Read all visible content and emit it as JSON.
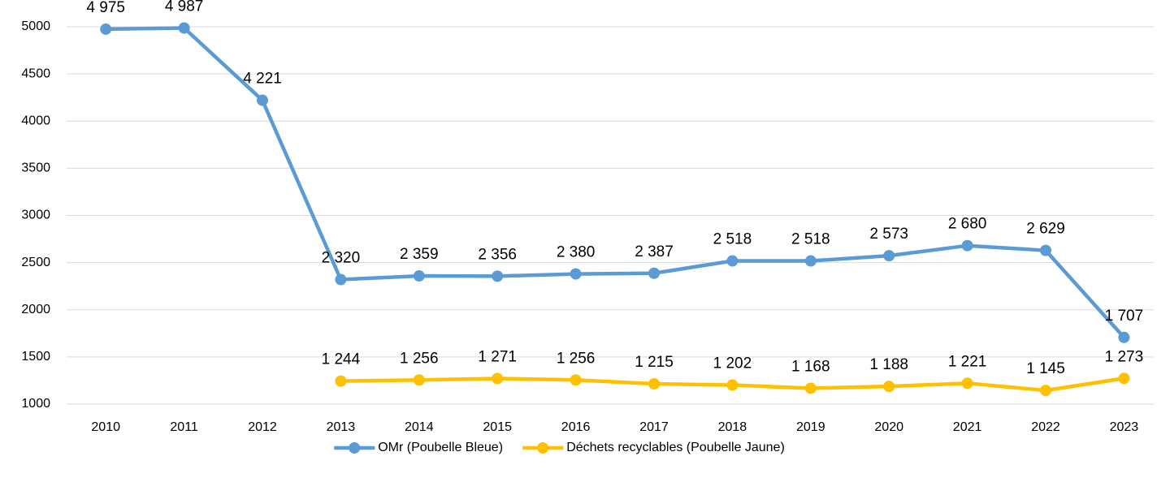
{
  "chart_data": {
    "type": "line",
    "categories": [
      "2010",
      "2011",
      "2012",
      "2013",
      "2014",
      "2015",
      "2016",
      "2017",
      "2018",
      "2019",
      "2020",
      "2021",
      "2022",
      "2023"
    ],
    "series": [
      {
        "name": "OMr (Poubelle Bleue)",
        "color": "#5b9bd5",
        "values": [
          4975,
          4987,
          4221,
          2320,
          2359,
          2356,
          2380,
          2387,
          2518,
          2518,
          2573,
          2680,
          2629,
          1707
        ],
        "value_labels": [
          "4 975",
          "4 987",
          "4 221",
          "2 320",
          "2 359",
          "2 356",
          "2 380",
          "2 387",
          "2 518",
          "2 518",
          "2 573",
          "2 680",
          "2 629",
          "1 707"
        ]
      },
      {
        "name": "Déchets recyclables (Poubelle Jaune)",
        "color": "#ffc000",
        "values": [
          null,
          null,
          null,
          1244,
          1256,
          1271,
          1256,
          1215,
          1202,
          1168,
          1188,
          1221,
          1145,
          1273
        ],
        "value_labels": [
          null,
          null,
          null,
          "1 244",
          "1 256",
          "1 271",
          "1 256",
          "1 215",
          "1 202",
          "1 168",
          "1 188",
          "1 221",
          "1 145",
          "1 273"
        ]
      }
    ],
    "ylim": [
      1000,
      5000
    ],
    "yticks": [
      1000,
      1500,
      2000,
      2500,
      3000,
      3500,
      4000,
      4500,
      5000
    ],
    "grid": true,
    "legend": "bottom"
  }
}
